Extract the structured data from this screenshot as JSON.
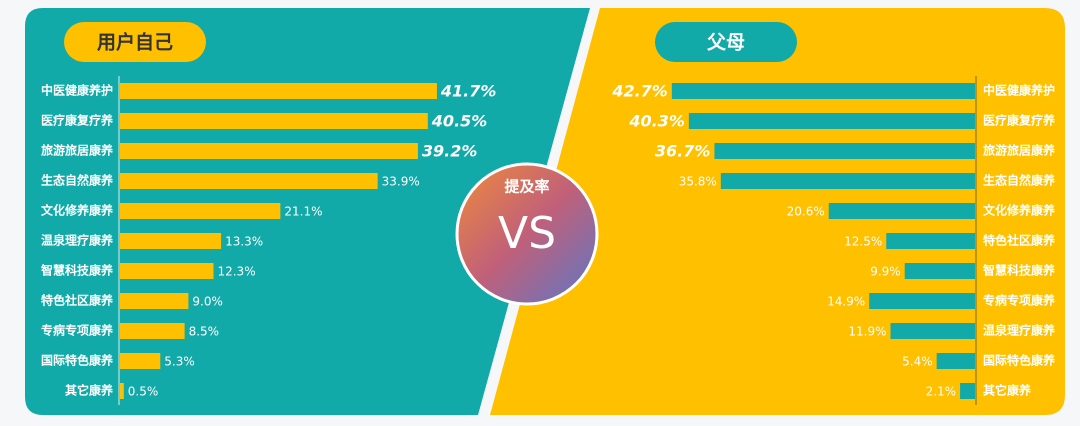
{
  "chart_data": [
    {
      "type": "bar",
      "orientation": "horizontal",
      "title": "用户自己",
      "color": "#ffc000",
      "categories": [
        "中医健康养护",
        "医疗康复疗养",
        "旅游旅居康养",
        "生态自然康养",
        "文化修养康养",
        "温泉理疗康养",
        "智慧科技康养",
        "特色社区康养",
        "专病专项康养",
        "国际特色康养",
        "其它康养"
      ],
      "values": [
        41.7,
        40.5,
        39.2,
        33.9,
        21.1,
        13.3,
        12.3,
        9.0,
        8.5,
        5.3,
        0.5
      ],
      "value_labels": [
        "41.7%",
        "40.5%",
        "39.2%",
        "33.9%",
        "21.1%",
        "13.3%",
        "12.3%",
        "9.0%",
        "8.5%",
        "5.3%",
        "0.5%"
      ]
    },
    {
      "type": "bar",
      "orientation": "horizontal",
      "title": "父母",
      "color": "#12a9a9",
      "categories": [
        "中医健康养护",
        "医疗康复疗养",
        "旅游旅居康养",
        "生态自然康养",
        "文化修养康养",
        "特色社区康养",
        "智慧科技康养",
        "专病专项康养",
        "温泉理疗康养",
        "国际特色康养",
        "其它康养"
      ],
      "values": [
        42.7,
        40.3,
        36.7,
        35.8,
        20.6,
        12.5,
        9.9,
        14.9,
        11.9,
        5.4,
        2.1
      ],
      "value_labels": [
        "42.7%",
        "40.3%",
        "36.7%",
        "35.8%",
        "20.6%",
        "12.5%",
        "9.9%",
        "14.9%",
        "11.9%",
        "5.4%",
        "2.1%"
      ]
    }
  ],
  "badge": {
    "title": "提及率",
    "text": "VS"
  }
}
